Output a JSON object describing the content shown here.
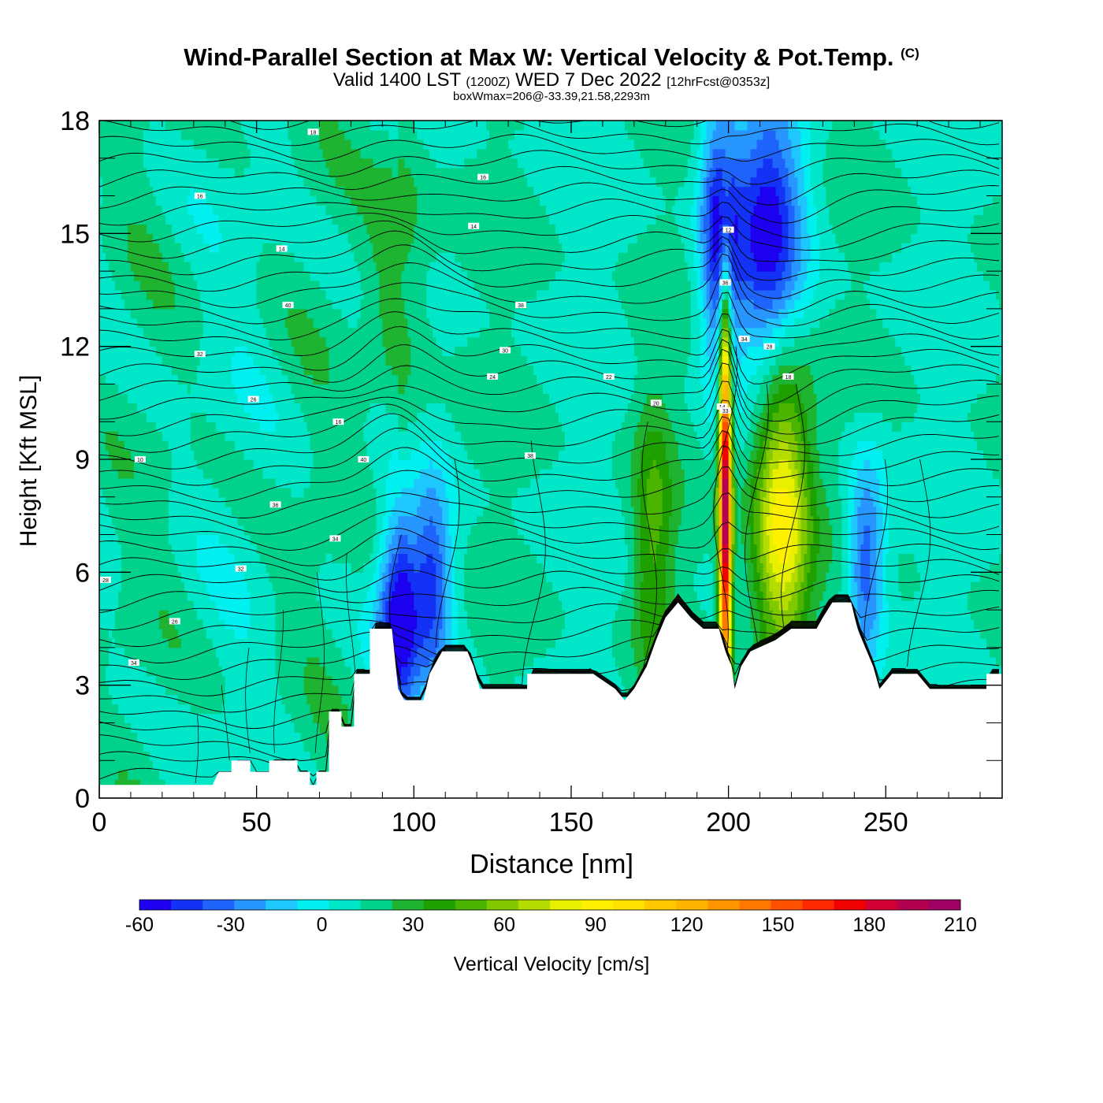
{
  "header": {
    "title": "Wind-Parallel Section at Max W: Vertical Velocity & Pot.Temp.",
    "copyright": "(C)",
    "valid_prefix": "Valid 1400 LST",
    "valid_zulu": "(1200Z)",
    "valid_date": "WED 7 Dec 2022",
    "forecast": "[12hrFcst@0353z]",
    "box_wmax": "boxWmax=206@-33.39,21.58,2293m"
  },
  "colorbar": {
    "title": "Vertical Velocity [cm/s]",
    "tick_labels": [
      "-60",
      "-30",
      "0",
      "30",
      "60",
      "90",
      "120",
      "150",
      "180",
      "210"
    ],
    "levels": [
      -60,
      210
    ],
    "colors": [
      "#1e00f0",
      "#1432f5",
      "#1e64fa",
      "#2896ff",
      "#1ec8ff",
      "#00f0f0",
      "#00e6c8",
      "#00d28c",
      "#1eb432",
      "#1ea000",
      "#4bb400",
      "#82c800",
      "#b4dc00",
      "#e6f000",
      "#fff000",
      "#ffe100",
      "#ffc800",
      "#ffb400",
      "#ff9600",
      "#ff7800",
      "#ff5000",
      "#ff2800",
      "#f00000",
      "#d20032",
      "#b40050",
      "#a00064"
    ]
  },
  "chart_data": {
    "type": "heatmap",
    "title": "Wind-Parallel Section at Max W: Vertical Velocity & Pot.Temp.",
    "xlabel": "Distance [nm]",
    "ylabel": "Height [Kft MSL]",
    "xlim": [
      0,
      287
    ],
    "ylim": [
      0,
      18
    ],
    "x_ticks": [
      0,
      50,
      100,
      150,
      200,
      250
    ],
    "y_ticks": [
      0,
      3,
      6,
      9,
      12,
      15,
      18
    ],
    "colorbar_label": "Vertical Velocity [cm/s]",
    "colorbar_range": [
      -60,
      210
    ],
    "terrain_kft": [
      [
        0,
        0.35
      ],
      [
        8,
        0.35
      ],
      [
        36,
        0.35
      ],
      [
        38,
        0.7
      ],
      [
        42,
        0.7
      ],
      [
        42,
        1.0
      ],
      [
        48,
        1.0
      ],
      [
        48,
        0.7
      ],
      [
        54,
        0.7
      ],
      [
        54,
        1.0
      ],
      [
        63,
        1.0
      ],
      [
        63,
        0.7
      ],
      [
        67,
        0.7
      ],
      [
        67,
        0.35
      ],
      [
        69,
        0.35
      ],
      [
        69,
        0.7
      ],
      [
        73,
        0.7
      ],
      [
        73,
        2.3
      ],
      [
        77,
        2.3
      ],
      [
        77,
        1.9
      ],
      [
        81,
        1.9
      ],
      [
        81,
        3.3
      ],
      [
        86,
        3.3
      ],
      [
        86,
        4.5
      ],
      [
        93,
        4.5
      ],
      [
        95,
        2.9
      ],
      [
        97,
        2.6
      ],
      [
        103,
        2.6
      ],
      [
        105,
        3.3
      ],
      [
        109,
        3.9
      ],
      [
        117,
        3.9
      ],
      [
        119,
        3.5
      ],
      [
        121,
        2.9
      ],
      [
        136,
        2.9
      ],
      [
        136,
        3.3
      ],
      [
        157,
        3.3
      ],
      [
        164,
        2.9
      ],
      [
        167,
        2.6
      ],
      [
        170,
        2.9
      ],
      [
        174,
        3.5
      ],
      [
        177,
        4.2
      ],
      [
        180,
        4.8
      ],
      [
        184,
        5.2
      ],
      [
        188,
        4.8
      ],
      [
        192,
        4.5
      ],
      [
        197,
        4.5
      ],
      [
        199,
        3.9
      ],
      [
        201,
        3.5
      ],
      [
        202,
        2.9
      ],
      [
        204,
        3.5
      ],
      [
        207,
        3.9
      ],
      [
        215,
        4.2
      ],
      [
        220,
        4.5
      ],
      [
        228,
        4.5
      ],
      [
        230,
        4.8
      ],
      [
        233,
        5.2
      ],
      [
        239,
        5.2
      ],
      [
        241,
        4.5
      ],
      [
        244,
        3.9
      ],
      [
        246,
        3.5
      ],
      [
        248,
        2.9
      ],
      [
        252,
        3.3
      ],
      [
        260,
        3.3
      ],
      [
        264,
        2.9
      ],
      [
        282,
        2.9
      ],
      [
        282,
        3.3
      ],
      [
        287,
        3.3
      ]
    ],
    "w_features": [
      {
        "kind": "updraft",
        "x": 199,
        "z_range": [
          3.5,
          12
        ],
        "w_max": 206
      },
      {
        "kind": "updraft",
        "x": 217,
        "z_range": [
          3.9,
          11
        ],
        "w_max": 95
      },
      {
        "kind": "updraft",
        "x": 176,
        "z_range": [
          3.5,
          10
        ],
        "w_max": 45
      },
      {
        "kind": "updraft",
        "x": 240,
        "z_range": [
          3.9,
          8.5
        ],
        "w_max": 30
      },
      {
        "kind": "downdraft",
        "x": 95,
        "z_range": [
          2.6,
          7
        ],
        "w_min": -60
      },
      {
        "kind": "downdraft",
        "x": 106,
        "z_range": [
          3.5,
          8
        ],
        "w_min": -40
      },
      {
        "kind": "downdraft",
        "x": 243,
        "z_range": [
          4,
          8.5
        ],
        "w_min": -55
      },
      {
        "kind": "downdraft",
        "x": 213,
        "z_range": [
          12,
          18
        ],
        "w_min": -55
      },
      {
        "kind": "downdraft",
        "x": 197,
        "z_range": [
          12,
          18
        ],
        "w_min": -50
      }
    ],
    "theta_contour_labels": [
      "18",
      "16",
      "16",
      "14",
      "14",
      "12",
      "40",
      "38",
      "36",
      "34",
      "32",
      "30",
      "28",
      "26",
      "24",
      "22",
      "20",
      "18",
      "16",
      "14",
      "10",
      "40",
      "38",
      "36",
      "34",
      "32",
      "28",
      "26",
      "34",
      "33"
    ]
  }
}
